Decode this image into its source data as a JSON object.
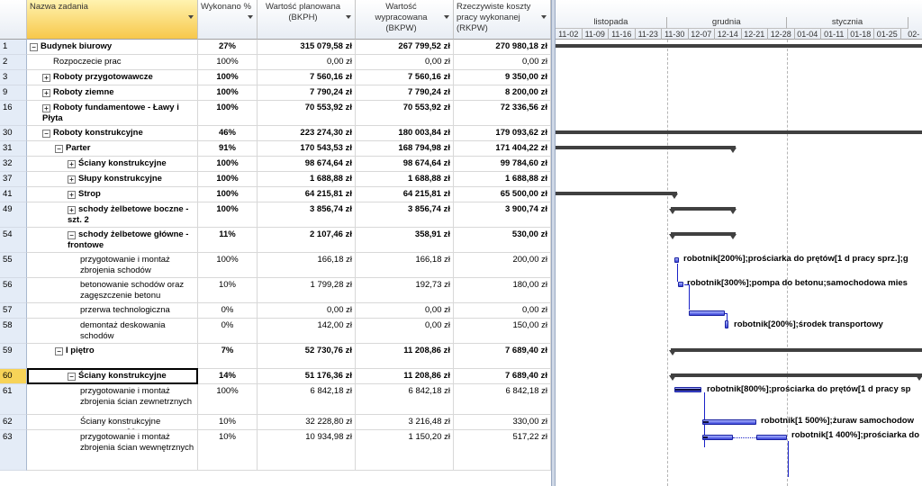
{
  "columns": [
    {
      "key": "id",
      "label": ""
    },
    {
      "key": "name",
      "label": "Nazwa zadania"
    },
    {
      "key": "pct",
      "label": "Wykonano %"
    },
    {
      "key": "bkph",
      "label": "Wartość planowana (BKPH)"
    },
    {
      "key": "bkpw",
      "label": "Wartość wypracowana (BKPW)"
    },
    {
      "key": "rkpw",
      "label": "Rzeczywiste koszty pracy wykonanej (RKPW)"
    }
  ],
  "rows": [
    {
      "id": "1",
      "name": "Budynek biurowy",
      "pct": "27%",
      "bkph": "315 079,58 zł",
      "bkpw": "267 799,52 zł",
      "rkpw": "270 980,18 zł",
      "bold": true,
      "indent": 0,
      "toggle": "−"
    },
    {
      "id": "2",
      "name": "Rozpoczecie prac",
      "pct": "100%",
      "bkph": "0,00 zł",
      "bkpw": "0,00 zł",
      "rkpw": "0,00 zł",
      "bold": false,
      "indent": 1,
      "toggle": ""
    },
    {
      "id": "3",
      "name": "Roboty przygotowawcze",
      "pct": "100%",
      "bkph": "7 560,16 zł",
      "bkpw": "7 560,16 zł",
      "rkpw": "9 350,00 zł",
      "bold": true,
      "indent": 1,
      "toggle": "+"
    },
    {
      "id": "9",
      "name": "Roboty ziemne",
      "pct": "100%",
      "bkph": "7 790,24 zł",
      "bkpw": "7 790,24 zł",
      "rkpw": "8 200,00 zł",
      "bold": true,
      "indent": 1,
      "toggle": "+"
    },
    {
      "id": "16",
      "name": "Roboty fundamentowe - Ławy i Płyta",
      "pct": "100%",
      "bkph": "70 553,92 zł",
      "bkpw": "70 553,92 zł",
      "rkpw": "72 336,56 zł",
      "bold": true,
      "indent": 1,
      "toggle": "+"
    },
    {
      "id": "30",
      "name": "Roboty konstrukcyjne",
      "pct": "46%",
      "bkph": "223 274,30 zł",
      "bkpw": "180 003,84 zł",
      "rkpw": "179 093,62 zł",
      "bold": true,
      "indent": 1,
      "toggle": "−"
    },
    {
      "id": "31",
      "name": "Parter",
      "pct": "91%",
      "bkph": "170 543,53 zł",
      "bkpw": "168 794,98 zł",
      "rkpw": "171 404,22 zł",
      "bold": true,
      "indent": 2,
      "toggle": "−"
    },
    {
      "id": "32",
      "name": "Ściany konstrukcyjne",
      "pct": "100%",
      "bkph": "98 674,64 zł",
      "bkpw": "98 674,64 zł",
      "rkpw": "99 784,60 zł",
      "bold": true,
      "indent": 3,
      "toggle": "+"
    },
    {
      "id": "37",
      "name": "Słupy konstrukcyjne",
      "pct": "100%",
      "bkph": "1 688,88 zł",
      "bkpw": "1 688,88 zł",
      "rkpw": "1 688,88 zł",
      "bold": true,
      "indent": 3,
      "toggle": "+"
    },
    {
      "id": "41",
      "name": "Strop",
      "pct": "100%",
      "bkph": "64 215,81 zł",
      "bkpw": "64 215,81 zł",
      "rkpw": "65 500,00 zł",
      "bold": true,
      "indent": 3,
      "toggle": "+"
    },
    {
      "id": "49",
      "name": "schody żelbetowe boczne - szt. 2",
      "pct": "100%",
      "bkph": "3 856,74 zł",
      "bkpw": "3 856,74 zł",
      "rkpw": "3 900,74 zł",
      "bold": true,
      "indent": 3,
      "toggle": "+"
    },
    {
      "id": "54",
      "name": "schody żelbetowe główne - frontowe",
      "pct": "11%",
      "bkph": "2 107,46 zł",
      "bkpw": "358,91 zł",
      "rkpw": "530,00 zł",
      "bold": true,
      "indent": 3,
      "toggle": "−"
    },
    {
      "id": "55",
      "name": "przygotowanie i montaż zbrojenia schodów",
      "pct": "100%",
      "bkph": "166,18 zł",
      "bkpw": "166,18 zł",
      "rkpw": "200,00 zł",
      "bold": false,
      "indent": 4,
      "toggle": ""
    },
    {
      "id": "56",
      "name": "betonowanie schodów oraz zagęszczenie betonu",
      "pct": "10%",
      "bkph": "1 799,28 zł",
      "bkpw": "192,73 zł",
      "rkpw": "180,00 zł",
      "bold": false,
      "indent": 4,
      "toggle": ""
    },
    {
      "id": "57",
      "name": "przerwa technologiczna",
      "pct": "0%",
      "bkph": "0,00 zł",
      "bkpw": "0,00 zł",
      "rkpw": "0,00 zł",
      "bold": false,
      "indent": 4,
      "toggle": ""
    },
    {
      "id": "58",
      "name": "demontaż deskowania schodów",
      "pct": "0%",
      "bkph": "142,00 zł",
      "bkpw": "0,00 zł",
      "rkpw": "150,00 zł",
      "bold": false,
      "indent": 4,
      "toggle": ""
    },
    {
      "id": "59",
      "name": "I piętro",
      "pct": "7%",
      "bkph": "52 730,76 zł",
      "bkpw": "11 208,86 zł",
      "rkpw": "7 689,40 zł",
      "bold": true,
      "indent": 2,
      "toggle": "−"
    },
    {
      "id": "60",
      "name": "Ściany konstrukcyjne",
      "pct": "14%",
      "bkph": "51 176,36 zł",
      "bkpw": "11 208,86 zł",
      "rkpw": "7 689,40 zł",
      "bold": true,
      "indent": 3,
      "toggle": "−",
      "selected": true
    },
    {
      "id": "61",
      "name": "przygotowanie i montaż zbrojenia ścian zewnetrznych",
      "pct": "100%",
      "bkph": "6 842,18 zł",
      "bkpw": "6 842,18 zł",
      "rkpw": "6 842,18 zł",
      "bold": false,
      "indent": 4,
      "toggle": ""
    },
    {
      "id": "62",
      "name": "Ściany konstrukcyjne zewnetrzne 20 cm",
      "pct": "10%",
      "bkph": "32 228,80 zł",
      "bkpw": "3 216,48 zł",
      "rkpw": "330,00 zł",
      "bold": false,
      "indent": 4,
      "toggle": ""
    },
    {
      "id": "63",
      "name": "przygotowanie i montaż zbrojenia ścian wewnętrznych",
      "pct": "10%",
      "bkph": "10 934,98 zł",
      "bkpw": "1 150,20 zł",
      "rkpw": "517,22 zł",
      "bold": false,
      "indent": 4,
      "toggle": ""
    }
  ],
  "timescale": {
    "months": [
      "listopada",
      "grudnia",
      "stycznia"
    ],
    "weeks": [
      "11-02",
      "11-09",
      "11-16",
      "11-23",
      "11-30",
      "12-07",
      "12-14",
      "12-21",
      "12-28",
      "01-04",
      "01-11",
      "01-18",
      "01-25",
      "02-"
    ]
  },
  "resource_labels": {
    "r55": "robotnik[200%];prościarka do prętów[1 d pracy sprz.];g",
    "r56": "robotnik[300%];pompa do betonu;samochodowa mies",
    "r58": "robotnik[200%];środek transportowy",
    "r61": "robotnik[800%];prościarka do prętów[1 d pracy sp",
    "r62": "robotnik[1 500%];żuraw samochodow",
    "r63": "robotnik[1 400%];prościarka do"
  },
  "colors": {
    "selected_header": "#f7c84a",
    "summary_bar": "#404040",
    "task_bar": "#3a44d8",
    "row_header": "#e4ecf7"
  }
}
